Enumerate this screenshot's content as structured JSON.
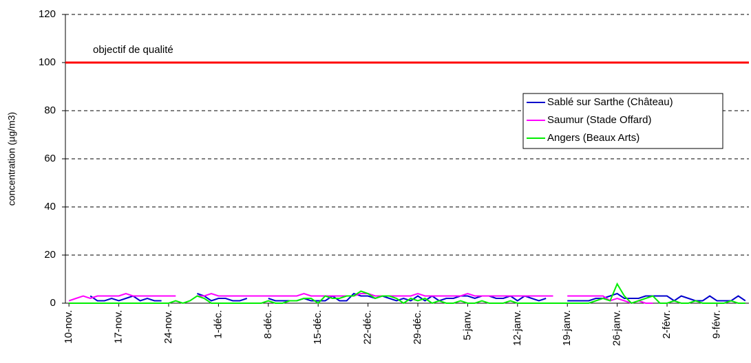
{
  "chart_data": {
    "type": "line",
    "ylabel": "concentration (µg/m3)",
    "categories": [
      "10-nov.",
      null,
      null,
      null,
      null,
      null,
      null,
      "17-nov.",
      null,
      null,
      null,
      null,
      null,
      null,
      "24-nov.",
      null,
      null,
      null,
      null,
      null,
      null,
      "1-déc.",
      null,
      null,
      null,
      null,
      null,
      null,
      "8-déc.",
      null,
      null,
      null,
      null,
      null,
      null,
      "15-déc.",
      null,
      null,
      null,
      null,
      null,
      null,
      "22-déc.",
      null,
      null,
      null,
      null,
      null,
      null,
      "29-déc.",
      null,
      null,
      null,
      null,
      null,
      null,
      "5-janv.",
      null,
      null,
      null,
      null,
      null,
      null,
      "12-janv.",
      null,
      null,
      null,
      null,
      null,
      null,
      "19-janv.",
      null,
      null,
      null,
      null,
      null,
      null,
      "26-janv.",
      null,
      null,
      null,
      null,
      null,
      null,
      "2-févr.",
      null,
      null,
      null,
      null,
      null,
      null,
      "9-févr.",
      null,
      null,
      null,
      null
    ],
    "series": [
      {
        "name": "Sablé sur Sarthe (Château)",
        "color": "#0000cc",
        "values": [
          null,
          null,
          null,
          3,
          1,
          1,
          2,
          1,
          2,
          3,
          1,
          2,
          1,
          1,
          null,
          null,
          null,
          null,
          4,
          3,
          1,
          2,
          2,
          1,
          1,
          2,
          null,
          null,
          2,
          1,
          1,
          1,
          1,
          2,
          1,
          1,
          1,
          3,
          1,
          1,
          4,
          3,
          3,
          2,
          3,
          2,
          1,
          2,
          1,
          3,
          1,
          3,
          1,
          2,
          2,
          3,
          3,
          2,
          3,
          3,
          2,
          2,
          3,
          1,
          3,
          2,
          1,
          2,
          null,
          null,
          1,
          1,
          1,
          1,
          2,
          2,
          3,
          4,
          2,
          2,
          2,
          3,
          3,
          3,
          3,
          1,
          3,
          2,
          1,
          1,
          3,
          1,
          1,
          1,
          3,
          1
        ]
      },
      {
        "name": "Saumur (Stade Offard)",
        "color": "#ff00ff",
        "values": [
          1,
          2,
          3,
          2,
          3,
          3,
          3,
          3,
          4,
          3,
          3,
          3,
          3,
          3,
          3,
          3,
          null,
          null,
          3,
          3,
          4,
          3,
          3,
          3,
          3,
          3,
          3,
          3,
          3,
          3,
          3,
          3,
          3,
          4,
          3,
          3,
          3,
          3,
          3,
          3,
          3,
          4,
          4,
          3,
          3,
          3,
          3,
          3,
          3,
          4,
          3,
          3,
          3,
          3,
          3,
          3,
          4,
          3,
          3,
          3,
          3,
          3,
          3,
          3,
          3,
          3,
          3,
          3,
          3,
          null,
          3,
          3,
          3,
          3,
          3,
          3,
          1,
          2,
          1,
          0,
          1,
          0,
          0,
          null,
          null,
          null,
          null,
          null,
          null,
          null,
          null,
          null,
          null,
          null,
          null,
          null
        ]
      },
      {
        "name": "Angers (Beaux Arts)",
        "color": "#00ee00",
        "values": [
          0,
          0,
          0,
          0,
          0,
          0,
          0,
          0,
          0,
          0,
          0,
          0,
          0,
          0,
          0,
          1,
          0,
          1,
          3,
          2,
          0,
          0,
          0,
          0,
          0,
          0,
          0,
          0,
          1,
          0,
          0,
          1,
          1,
          2,
          2,
          0,
          3,
          2,
          2,
          3,
          3,
          5,
          4,
          2,
          3,
          3,
          2,
          0,
          2,
          1,
          2,
          0,
          1,
          0,
          0,
          1,
          0,
          0,
          1,
          0,
          0,
          0,
          1,
          0,
          0,
          0,
          0,
          0,
          0,
          0,
          0,
          0,
          0,
          0,
          1,
          2,
          1,
          8,
          3,
          0,
          1,
          2,
          3,
          0,
          0,
          1,
          0,
          0,
          1,
          0,
          0,
          0,
          0,
          1,
          0,
          0
        ]
      }
    ],
    "reference_line": {
      "value": 100,
      "label": "objectif de qualité",
      "color": "#ff0000"
    },
    "ylim": [
      0,
      120
    ],
    "yticks": [
      0,
      20,
      40,
      60,
      80,
      100,
      120
    ],
    "grid": true,
    "legend": "upper right"
  }
}
